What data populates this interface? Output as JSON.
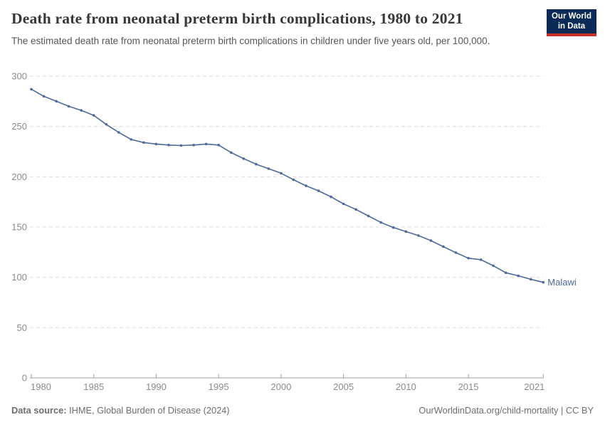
{
  "header": {
    "title": "Death rate from neonatal preterm birth complications, 1980 to 2021",
    "subtitle": "The estimated death rate from neonatal preterm birth complications in children under five years old, per 100,000.",
    "logo": {
      "line1": "Our World",
      "line2": "in Data"
    }
  },
  "chart_data": {
    "type": "line",
    "title": "Death rate from neonatal preterm birth complications, 1980 to 2021",
    "xlabel": "",
    "ylabel": "",
    "xlim": [
      1980,
      2021
    ],
    "ylim": [
      0,
      300
    ],
    "x_ticks": [
      1980,
      1985,
      1990,
      1995,
      2000,
      2005,
      2010,
      2015,
      2021
    ],
    "y_ticks": [
      0,
      50,
      100,
      150,
      200,
      250,
      300
    ],
    "grid": "horizontal-dashed",
    "legend_position": "end-of-line",
    "end_label": "Malawi",
    "series": [
      {
        "name": "Malawi",
        "color": "#4c6a9c",
        "x": [
          1980,
          1981,
          1982,
          1983,
          1984,
          1985,
          1986,
          1987,
          1988,
          1989,
          1990,
          1991,
          1992,
          1993,
          1994,
          1995,
          1996,
          1997,
          1998,
          1999,
          2000,
          2001,
          2002,
          2003,
          2004,
          2005,
          2006,
          2007,
          2008,
          2009,
          2010,
          2011,
          2012,
          2013,
          2014,
          2015,
          2016,
          2017,
          2018,
          2019,
          2020,
          2021
        ],
        "values": [
          287,
          280,
          275,
          270,
          266,
          261,
          252,
          244,
          237,
          234,
          232.5,
          231.5,
          231,
          231.5,
          232.5,
          231.5,
          224,
          218,
          212.5,
          208,
          203.5,
          197,
          191,
          186,
          180,
          173,
          167.5,
          161,
          154.5,
          149.5,
          145.5,
          141.5,
          136.5,
          130.5,
          124.5,
          119,
          117.5,
          111.5,
          104.5,
          101.5,
          98,
          95
        ]
      }
    ]
  },
  "footer": {
    "datasource_label": "Data source:",
    "datasource_value": " IHME, Global Burden of Disease (2024)",
    "credit": "OurWorldinData.org/child-mortality | CC BY"
  },
  "colors": {
    "accent_line": "#4c6a9c",
    "logo_navy": "#0b2a55",
    "logo_red": "#c5302b",
    "grid": "#dcdcdc",
    "axis": "#9e9e9e",
    "tick_text": "#8b8b8b"
  }
}
